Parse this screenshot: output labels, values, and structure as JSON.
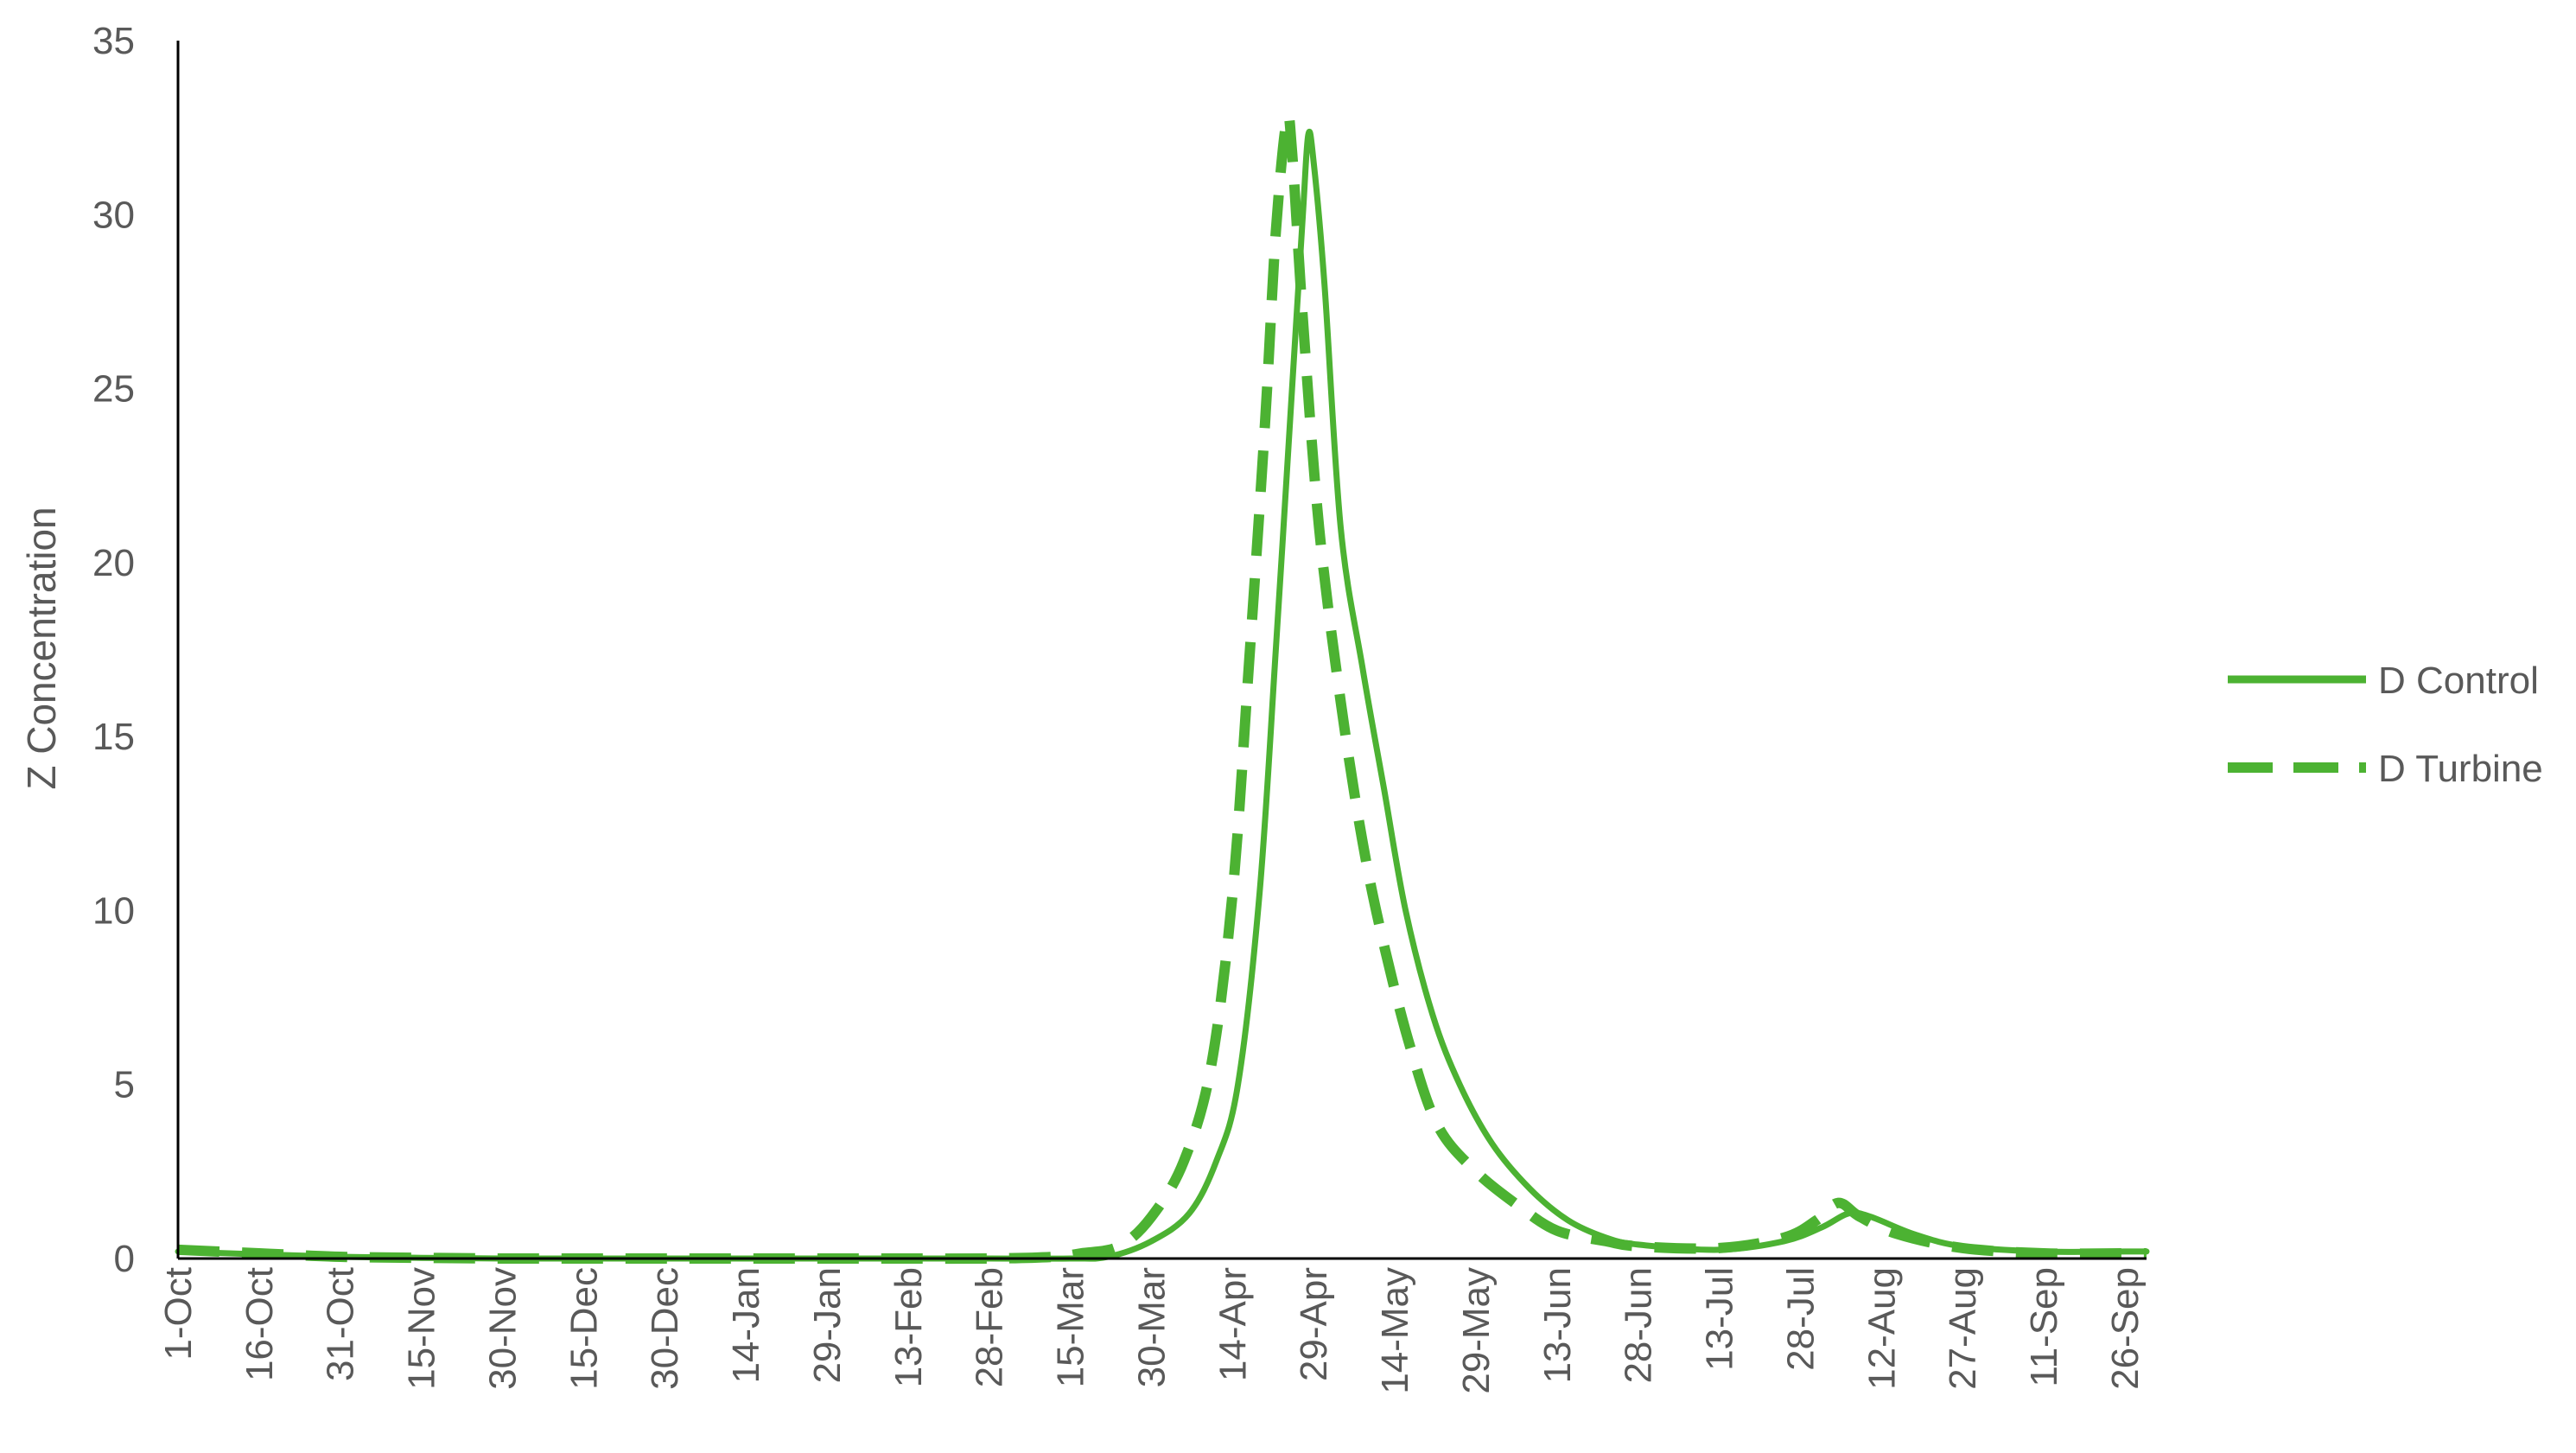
{
  "chart_data": {
    "type": "line",
    "ylabel": "Z Concentration",
    "xlabel": "",
    "ylim": [
      0,
      35
    ],
    "yticks": [
      0,
      5,
      10,
      15,
      20,
      25,
      30,
      35
    ],
    "xlim": [
      "1-Oct",
      "30-Sep"
    ],
    "xticks": [
      "1-Oct",
      "16-Oct",
      "31-Oct",
      "15-Nov",
      "30-Nov",
      "15-Dec",
      "30-Dec",
      "14-Jan",
      "29-Jan",
      "13-Feb",
      "28-Feb",
      "15-Mar",
      "30-Mar",
      "14-Apr",
      "29-Apr",
      "14-May",
      "29-May",
      "13-Jun",
      "28-Jun",
      "13-Jul",
      "28-Jul",
      "12-Aug",
      "27-Aug",
      "11-Sep",
      "26-Sep"
    ],
    "grid": false,
    "legend_position": "right",
    "line_color": "#4CB232",
    "series": [
      {
        "name": "D Control",
        "style": "solid",
        "points": [
          [
            "1-Oct",
            0.2
          ],
          [
            "16-Oct",
            0.12
          ],
          [
            "31-Oct",
            0.05
          ],
          [
            "15-Nov",
            0.02
          ],
          [
            "30-Nov",
            0.0
          ],
          [
            "15-Dec",
            0.0
          ],
          [
            "30-Dec",
            0.0
          ],
          [
            "14-Jan",
            0.0
          ],
          [
            "29-Jan",
            0.0
          ],
          [
            "13-Feb",
            0.0
          ],
          [
            "28-Feb",
            0.0
          ],
          [
            "15-Mar",
            0.0
          ],
          [
            "22-Mar",
            0.05
          ],
          [
            "30-Mar",
            0.5
          ],
          [
            "6-Apr",
            1.3
          ],
          [
            "11-Apr",
            2.8
          ],
          [
            "15-Apr",
            5.0
          ],
          [
            "19-Apr",
            10.5
          ],
          [
            "22-Apr",
            17.5
          ],
          [
            "25-Apr",
            25.0
          ],
          [
            "27-Apr",
            30.0
          ],
          [
            "28-Apr",
            32.3
          ],
          [
            "29-Apr",
            31.5
          ],
          [
            "1-May",
            28.0
          ],
          [
            "4-May",
            21.0
          ],
          [
            "8-May",
            17.0
          ],
          [
            "12-May",
            13.5
          ],
          [
            "16-May",
            10.0
          ],
          [
            "21-May",
            7.0
          ],
          [
            "26-May",
            5.0
          ],
          [
            "1-Jun",
            3.3
          ],
          [
            "8-Jun",
            2.0
          ],
          [
            "15-Jun",
            1.1
          ],
          [
            "22-Jun",
            0.6
          ],
          [
            "28-Jun",
            0.4
          ],
          [
            "13-Jul",
            0.25
          ],
          [
            "25-Jul",
            0.5
          ],
          [
            "1-Aug",
            0.9
          ],
          [
            "6-Aug",
            1.3
          ],
          [
            "10-Aug",
            1.2
          ],
          [
            "18-Aug",
            0.7
          ],
          [
            "27-Aug",
            0.35
          ],
          [
            "11-Sep",
            0.2
          ],
          [
            "26-Sep",
            0.2
          ],
          [
            "30-Sep",
            0.2
          ]
        ]
      },
      {
        "name": "D Turbine",
        "style": "dashed",
        "points": [
          [
            "1-Oct",
            0.25
          ],
          [
            "16-Oct",
            0.15
          ],
          [
            "31-Oct",
            0.05
          ],
          [
            "15-Nov",
            0.02
          ],
          [
            "30-Nov",
            0.0
          ],
          [
            "15-Dec",
            0.0
          ],
          [
            "30-Dec",
            0.0
          ],
          [
            "14-Jan",
            0.0
          ],
          [
            "29-Jan",
            0.0
          ],
          [
            "13-Feb",
            0.0
          ],
          [
            "28-Feb",
            0.0
          ],
          [
            "12-Mar",
            0.05
          ],
          [
            "17-Mar",
            0.15
          ],
          [
            "24-Mar",
            0.35
          ],
          [
            "30-Mar",
            1.2
          ],
          [
            "5-Apr",
            2.8
          ],
          [
            "10-Apr",
            5.5
          ],
          [
            "14-Apr",
            10.5
          ],
          [
            "17-Apr",
            17.0
          ],
          [
            "20-Apr",
            24.0
          ],
          [
            "22-Apr",
            29.5
          ],
          [
            "24-Apr",
            32.7
          ],
          [
            "25-Apr",
            31.8
          ],
          [
            "27-Apr",
            27.0
          ],
          [
            "30-Apr",
            21.0
          ],
          [
            "4-May",
            16.0
          ],
          [
            "8-May",
            12.0
          ],
          [
            "12-May",
            9.0
          ],
          [
            "17-May",
            6.0
          ],
          [
            "22-May",
            3.8
          ],
          [
            "29-May",
            2.5
          ],
          [
            "6-Jun",
            1.5
          ],
          [
            "13-Jun",
            0.8
          ],
          [
            "22-Jun",
            0.5
          ],
          [
            "28-Jun",
            0.35
          ],
          [
            "13-Jul",
            0.3
          ],
          [
            "25-Jul",
            0.6
          ],
          [
            "31-Jul",
            1.1
          ],
          [
            "4-Aug",
            1.6
          ],
          [
            "8-Aug",
            1.2
          ],
          [
            "15-Aug",
            0.7
          ],
          [
            "27-Aug",
            0.3
          ],
          [
            "11-Sep",
            0.15
          ],
          [
            "26-Sep",
            0.15
          ],
          [
            "30-Sep",
            0.15
          ]
        ]
      }
    ]
  }
}
